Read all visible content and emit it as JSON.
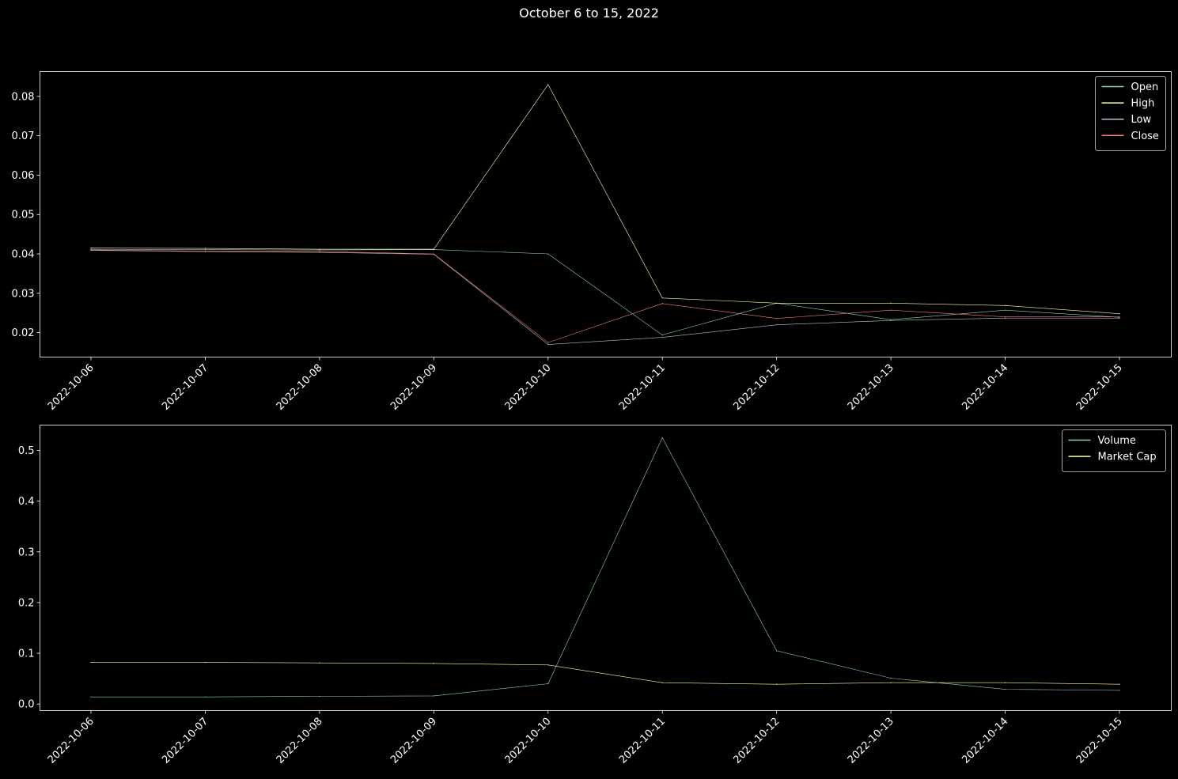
{
  "chart_data": [
    {
      "type": "line",
      "title": "October 6 to 15, 2022",
      "categories": [
        "2022-10-06",
        "2022-10-07",
        "2022-10-08",
        "2022-10-09",
        "2022-10-10",
        "2022-10-11",
        "2022-10-12",
        "2022-10-13",
        "2022-10-14",
        "2022-10-15"
      ],
      "ylim": [
        0.0138,
        0.0863
      ],
      "yticks": [
        0.02,
        0.03,
        0.04,
        0.05,
        0.06,
        0.07,
        0.08
      ],
      "ytick_labels": [
        "0.02",
        "0.03",
        "0.04",
        "0.05",
        "0.06",
        "0.07",
        "0.08"
      ],
      "legend_position": "upper-right",
      "series": [
        {
          "name": "Open",
          "color": "#8dd3c7",
          "values": [
            0.0412,
            0.0411,
            0.041,
            0.0411,
            0.04,
            0.0194,
            0.0275,
            0.0233,
            0.0257,
            0.0239
          ]
        },
        {
          "name": "High",
          "color": "#feffb3",
          "values": [
            0.0415,
            0.0414,
            0.0412,
            0.0412,
            0.083,
            0.0288,
            0.0275,
            0.0275,
            0.0269,
            0.0248
          ]
        },
        {
          "name": "Low",
          "color": "#bfbbd9",
          "values": [
            0.0409,
            0.0406,
            0.0404,
            0.0399,
            0.017,
            0.0188,
            0.022,
            0.0231,
            0.0237,
            0.0237
          ]
        },
        {
          "name": "Close",
          "color": "#fa8174",
          "values": [
            0.041,
            0.0407,
            0.0406,
            0.04,
            0.0175,
            0.0274,
            0.0236,
            0.0257,
            0.024,
            0.024
          ]
        }
      ]
    },
    {
      "type": "line",
      "categories": [
        "2022-10-06",
        "2022-10-07",
        "2022-10-08",
        "2022-10-09",
        "2022-10-10",
        "2022-10-11",
        "2022-10-12",
        "2022-10-13",
        "2022-10-14",
        "2022-10-15"
      ],
      "ylim": [
        -0.013,
        0.55
      ],
      "yticks": [
        0.0,
        0.1,
        0.2,
        0.3,
        0.4,
        0.5
      ],
      "ytick_labels": [
        "0.0",
        "0.1",
        "0.2",
        "0.3",
        "0.4",
        "0.5"
      ],
      "legend_position": "upper-right",
      "series": [
        {
          "name": "Volume",
          "color": "#8dd3c7",
          "values": [
            0.014,
            0.014,
            0.015,
            0.016,
            0.04,
            0.525,
            0.105,
            0.051,
            0.029,
            0.027
          ]
        },
        {
          "name": "Market Cap",
          "color": "#feffb3",
          "values": [
            0.082,
            0.082,
            0.081,
            0.08,
            0.077,
            0.042,
            0.039,
            0.042,
            0.042,
            0.039
          ]
        }
      ]
    }
  ]
}
